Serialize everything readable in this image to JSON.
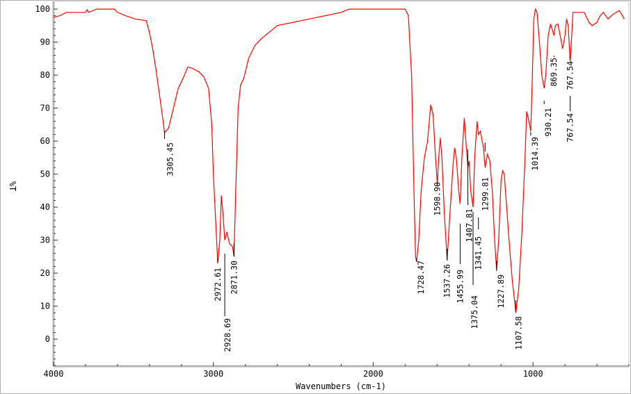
{
  "chart_data": {
    "type": "line",
    "title": "",
    "xlabel": "Wavenumbers (cm-1)",
    "ylabel": "%T",
    "xlim": [
      4000,
      400
    ],
    "ylim": [
      -8.2,
      101.7
    ],
    "x_ticks": [
      4000,
      3000,
      2000,
      1000
    ],
    "y_ticks": [
      0,
      10,
      20,
      30,
      40,
      50,
      60,
      70,
      80,
      90,
      100
    ],
    "grid": false,
    "line_color": "#ff0000",
    "series": [
      {
        "name": "%T",
        "points": [
          [
            4000,
            97.5
          ],
          [
            3960,
            98
          ],
          [
            3920,
            99
          ],
          [
            3800,
            99
          ],
          [
            3790,
            99.8
          ],
          [
            3780,
            99
          ],
          [
            3730,
            100
          ],
          [
            3620,
            100
          ],
          [
            3600,
            99
          ],
          [
            3550,
            98
          ],
          [
            3490,
            97
          ],
          [
            3420,
            96.5
          ],
          [
            3400,
            93
          ],
          [
            3380,
            88
          ],
          [
            3360,
            82
          ],
          [
            3340,
            75
          ],
          [
            3320,
            68
          ],
          [
            3305.45,
            62.5
          ],
          [
            3280,
            64
          ],
          [
            3250,
            70
          ],
          [
            3220,
            76
          ],
          [
            3190,
            79
          ],
          [
            3160,
            82.5
          ],
          [
            3130,
            82
          ],
          [
            3090,
            81
          ],
          [
            3060,
            79.5
          ],
          [
            3030,
            76
          ],
          [
            3010,
            65
          ],
          [
            3000,
            50
          ],
          [
            2985,
            35
          ],
          [
            2972.61,
            23
          ],
          [
            2960,
            30
          ],
          [
            2950,
            43.5
          ],
          [
            2940,
            38
          ],
          [
            2928.69,
            30
          ],
          [
            2915,
            32.5
          ],
          [
            2900,
            29
          ],
          [
            2880,
            28
          ],
          [
            2871.3,
            25
          ],
          [
            2860,
            45
          ],
          [
            2845,
            70
          ],
          [
            2830,
            77
          ],
          [
            2810,
            79
          ],
          [
            2780,
            85
          ],
          [
            2740,
            89
          ],
          [
            2700,
            91
          ],
          [
            2650,
            93
          ],
          [
            2600,
            95
          ],
          [
            2500,
            96
          ],
          [
            2400,
            97
          ],
          [
            2300,
            98
          ],
          [
            2200,
            99
          ],
          [
            2150,
            100
          ],
          [
            1800,
            100
          ],
          [
            1780,
            98
          ],
          [
            1760,
            80
          ],
          [
            1745,
            45
          ],
          [
            1735,
            25
          ],
          [
            1728.47,
            23.5
          ],
          [
            1715,
            30
          ],
          [
            1700,
            45
          ],
          [
            1680,
            55
          ],
          [
            1660,
            60
          ],
          [
            1640,
            71
          ],
          [
            1625,
            68
          ],
          [
            1610,
            55
          ],
          [
            1598.9,
            47
          ],
          [
            1590,
            55
          ],
          [
            1580,
            61
          ],
          [
            1570,
            55
          ],
          [
            1555,
            38
          ],
          [
            1537.26,
            24
          ],
          [
            1520,
            38
          ],
          [
            1500,
            53
          ],
          [
            1490,
            58
          ],
          [
            1480,
            55
          ],
          [
            1465,
            45
          ],
          [
            1455.99,
            41
          ],
          [
            1445,
            55
          ],
          [
            1430,
            67
          ],
          [
            1420,
            60
          ],
          [
            1407.81,
            52
          ],
          [
            1400,
            54
          ],
          [
            1390,
            45
          ],
          [
            1375.04,
            40
          ],
          [
            1365,
            55
          ],
          [
            1350,
            66
          ],
          [
            1341.45,
            62
          ],
          [
            1330,
            63
          ],
          [
            1310,
            58
          ],
          [
            1299.81,
            52
          ],
          [
            1285,
            56
          ],
          [
            1270,
            54
          ],
          [
            1255,
            45
          ],
          [
            1240,
            30
          ],
          [
            1227.89,
            21
          ],
          [
            1215,
            30
          ],
          [
            1200,
            48
          ],
          [
            1190,
            51
          ],
          [
            1180,
            50
          ],
          [
            1165,
            40
          ],
          [
            1150,
            30
          ],
          [
            1130,
            18
          ],
          [
            1107.58,
            8
          ],
          [
            1090,
            15
          ],
          [
            1070,
            32
          ],
          [
            1050,
            55
          ],
          [
            1040,
            69
          ],
          [
            1030,
            67
          ],
          [
            1014.39,
            63
          ],
          [
            1005,
            78
          ],
          [
            995,
            97
          ],
          [
            985,
            100
          ],
          [
            975,
            99
          ],
          [
            960,
            90
          ],
          [
            945,
            80
          ],
          [
            930.21,
            76
          ],
          [
            920,
            80
          ],
          [
            905,
            92
          ],
          [
            890,
            95.5
          ],
          [
            875,
            93
          ],
          [
            869.35,
            92
          ],
          [
            860,
            95
          ],
          [
            845,
            95.5
          ],
          [
            830,
            92
          ],
          [
            815,
            88
          ],
          [
            800,
            92
          ],
          [
            790,
            97
          ],
          [
            780,
            95
          ],
          [
            767.54,
            84
          ],
          [
            760,
            90
          ],
          [
            750,
            99
          ],
          [
            680,
            99
          ],
          [
            650,
            96
          ],
          [
            630,
            95
          ],
          [
            600,
            96
          ],
          [
            580,
            98
          ],
          [
            560,
            99
          ],
          [
            530,
            97
          ],
          [
            510,
            98
          ],
          [
            480,
            99
          ],
          [
            460,
            99.5
          ],
          [
            440,
            98
          ],
          [
            430,
            97
          ]
        ]
      }
    ],
    "peak_labels": [
      "3305.45",
      "2972.61",
      "2928.69",
      "2871.30",
      "1728.47",
      "1598.90",
      "1537.26",
      "1455.99",
      "1407.81",
      "1375.04",
      "1341.45",
      "1299.81",
      "1227.89",
      "1107.58",
      "1014.39",
      "930.21",
      "869.35",
      "767.54",
      "767.54"
    ],
    "peak_positions": [
      3305.45,
      2972.61,
      2928.69,
      2871.3,
      1728.47,
      1598.9,
      1537.26,
      1455.99,
      1407.81,
      1375.04,
      1341.45,
      1299.81,
      1227.89,
      1107.58,
      1014.39,
      930.21,
      869.35,
      767.54,
      767.54
    ]
  }
}
